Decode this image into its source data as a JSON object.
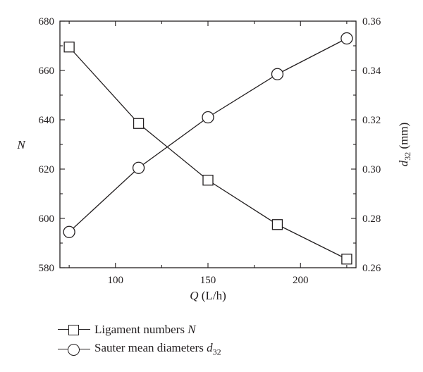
{
  "chart_data": {
    "type": "line",
    "x": [
      75,
      112.5,
      150,
      187.5,
      225
    ],
    "xlim": [
      70,
      230
    ],
    "xticks": [
      100,
      150,
      200
    ],
    "xlabel": {
      "var": "Q",
      "unit": "(L/h)"
    },
    "y_left": {
      "label": "N",
      "lim": [
        580,
        680
      ],
      "ticks": [
        580,
        600,
        620,
        640,
        660,
        680
      ]
    },
    "y_right": {
      "label_var": "d",
      "label_sub": "32",
      "label_unit": "(mm)",
      "lim": [
        0.26,
        0.36
      ],
      "ticks": [
        "0.26",
        "0.28",
        "0.30",
        "0.32",
        "0.34",
        "0.36"
      ]
    },
    "series": [
      {
        "name": "Ligament numbers",
        "name_var": "N",
        "marker": "square",
        "axis": "left",
        "values": [
          669.5,
          638.5,
          615.5,
          597.5,
          583.5
        ]
      },
      {
        "name": "Sauter mean diameters",
        "name_var": "d",
        "name_sub": "32",
        "marker": "circle",
        "axis": "right",
        "values": [
          0.2745,
          0.3005,
          0.321,
          0.3385,
          0.353
        ]
      }
    ],
    "grid": false,
    "legend_position": "bottom-left"
  }
}
